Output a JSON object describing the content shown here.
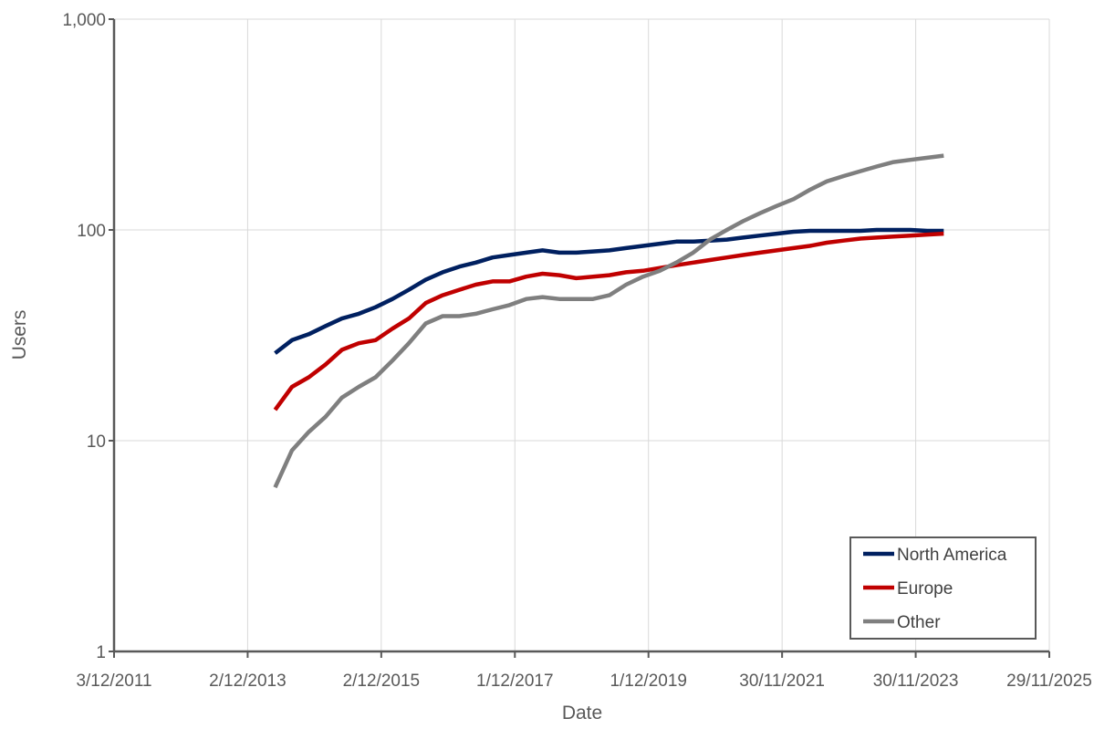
{
  "chart_data": {
    "type": "line",
    "title": "",
    "xlabel": "Date",
    "ylabel": "Users",
    "y_scale": "log",
    "ylim": [
      1,
      1000
    ],
    "xlim": [
      "2011-12-03",
      "2025-11-29"
    ],
    "y_ticks": [
      "1",
      "10",
      "100",
      "1,000"
    ],
    "x_ticks": [
      {
        "date": "2011-12-03",
        "label": "3/12/2011"
      },
      {
        "date": "2013-12-02",
        "label": "2/12/2013"
      },
      {
        "date": "2015-12-02",
        "label": "2/12/2015"
      },
      {
        "date": "2017-12-01",
        "label": "1/12/2017"
      },
      {
        "date": "2019-12-01",
        "label": "1/12/2019"
      },
      {
        "date": "2021-11-30",
        "label": "30/11/2021"
      },
      {
        "date": "2023-11-30",
        "label": "30/11/2023"
      },
      {
        "date": "2025-11-29",
        "label": "29/11/2025"
      }
    ],
    "grid": true,
    "legend_position": "bottom-right",
    "x": [
      "2014-05",
      "2014-08",
      "2014-11",
      "2015-02",
      "2015-05",
      "2015-08",
      "2015-11",
      "2016-02",
      "2016-05",
      "2016-08",
      "2016-11",
      "2017-02",
      "2017-05",
      "2017-08",
      "2017-11",
      "2018-02",
      "2018-05",
      "2018-08",
      "2018-11",
      "2019-02",
      "2019-05",
      "2019-08",
      "2019-11",
      "2020-02",
      "2020-05",
      "2020-08",
      "2020-11",
      "2021-02",
      "2021-05",
      "2021-08",
      "2021-11",
      "2022-02",
      "2022-05",
      "2022-08",
      "2022-11",
      "2023-02",
      "2023-05",
      "2023-08",
      "2023-11",
      "2024-02",
      "2024-05"
    ],
    "series": [
      {
        "name": "North America",
        "color": "#002060",
        "values": [
          26,
          30,
          32,
          35,
          38,
          40,
          43,
          47,
          52,
          58,
          63,
          67,
          70,
          74,
          76,
          78,
          80,
          78,
          78,
          79,
          80,
          82,
          84,
          86,
          88,
          88,
          89,
          90,
          92,
          94,
          96,
          98,
          99,
          99,
          99,
          99,
          100,
          100,
          100,
          99,
          99
        ]
      },
      {
        "name": "Europe",
        "color": "#C00000",
        "values": [
          14,
          18,
          20,
          23,
          27,
          29,
          30,
          34,
          38,
          45,
          49,
          52,
          55,
          57,
          57,
          60,
          62,
          61,
          59,
          60,
          61,
          63,
          64,
          66,
          68,
          70,
          72,
          74,
          76,
          78,
          80,
          82,
          84,
          87,
          89,
          91,
          92,
          93,
          94,
          95,
          96
        ]
      },
      {
        "name": "Other",
        "color": "#7F7F7F",
        "values": [
          6,
          9,
          11,
          13,
          16,
          18,
          20,
          24,
          29,
          36,
          39,
          39,
          40,
          42,
          44,
          47,
          48,
          47,
          47,
          47,
          49,
          55,
          60,
          64,
          70,
          78,
          90,
          100,
          110,
          120,
          130,
          140,
          155,
          170,
          180,
          190,
          200,
          210,
          215,
          220,
          225
        ]
      }
    ]
  }
}
